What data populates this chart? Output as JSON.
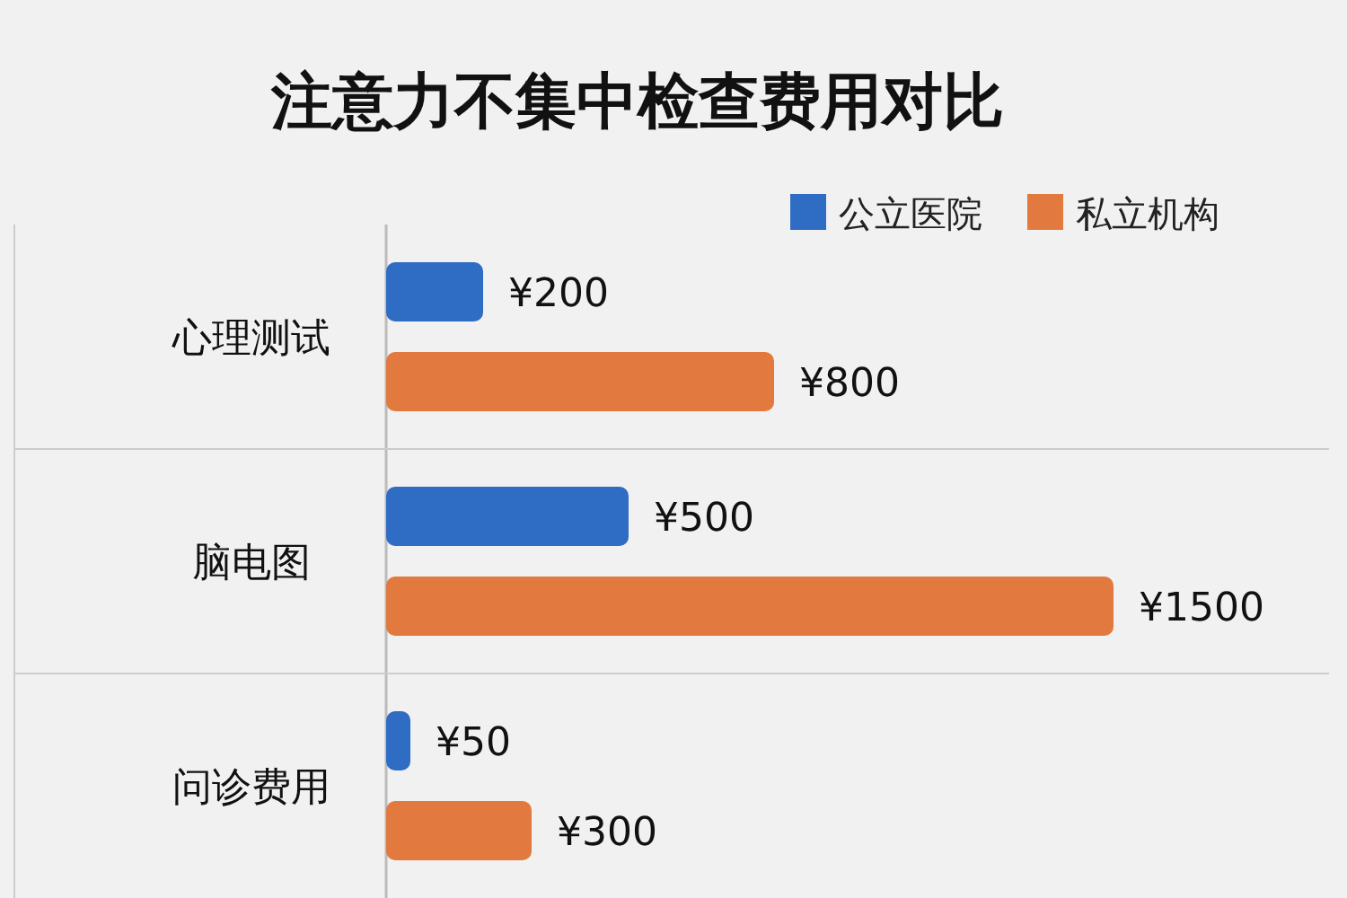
{
  "chart_data": {
    "type": "bar",
    "orientation": "horizontal",
    "title": "注意力不集中检查费用对比",
    "categories": [
      "心理测试",
      "脑电图",
      "问诊费用"
    ],
    "legend": "top right",
    "series": [
      {
        "name": "公立医院",
        "color": "#2f6cc4",
        "values": [
          200,
          500,
          50
        ],
        "value_labels": [
          "¥200",
          "¥500",
          "¥50"
        ]
      },
      {
        "name": "私立机构",
        "color": "#e27a3f",
        "values": [
          800,
          1500,
          300
        ],
        "value_labels": [
          "¥800",
          "¥1500",
          "¥300"
        ]
      }
    ]
  }
}
